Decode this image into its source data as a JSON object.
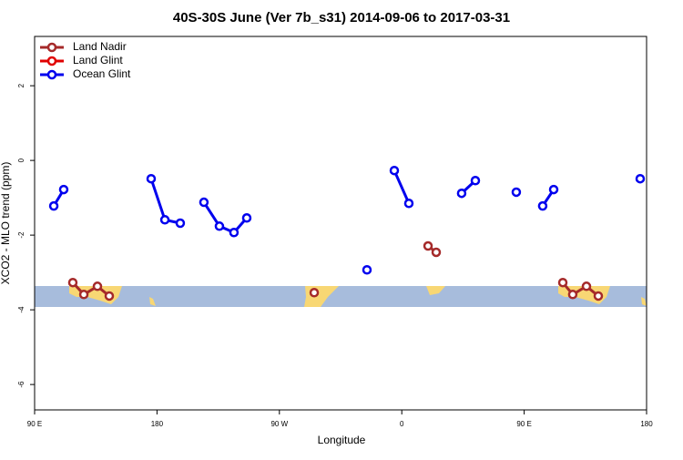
{
  "chart_data": {
    "type": "line",
    "title": "40S-30S June (Ver 7b_s31)   2014-09-06 to 2017-03-31",
    "x_label": "Longitude",
    "y_label": "XCO2 - MLO trend (ppm)",
    "xlim": [
      90,
      540
    ],
    "xticks": [
      {
        "value": 90,
        "label": "90 E"
      },
      {
        "value": 180,
        "label": "180"
      },
      {
        "value": 270,
        "label": "90 W"
      },
      {
        "value": 360,
        "label": "0"
      },
      {
        "value": 450,
        "label": "90 E"
      },
      {
        "value": 540,
        "label": "180"
      }
    ],
    "ylim": [
      -6.68,
      3.32
    ],
    "yticks": [
      2,
      0,
      -2,
      -4,
      -6
    ],
    "legend": "top-left",
    "series": [
      {
        "name": "Land Nadir",
        "color": "#a52a2a",
        "x": [
          118.1,
          126.2,
          136.2,
          144.9,
          null,
          295.6,
          null,
          379.3,
          385.3,
          null,
          478.4,
          485.7,
          495.8,
          504.5
        ],
        "values": [
          -3.27,
          -3.59,
          -3.37,
          -3.63,
          null,
          -3.54,
          null,
          -2.29,
          -2.46,
          null,
          -3.27,
          -3.59,
          -3.37,
          -3.63
        ]
      },
      {
        "name": "Land Glint",
        "color": "#e00000",
        "x": [],
        "values": []
      },
      {
        "name": "Ocean Glint",
        "color": "#0000ee",
        "x": [
          104.1,
          111.4,
          null,
          175.7,
          185.8,
          197.1,
          null,
          214.5,
          225.9,
          236.6,
          246.0,
          null,
          334.4,
          null,
          354.5,
          365.2,
          null,
          404.0,
          414.1,
          null,
          444.2,
          null,
          463.6,
          471.7,
          null,
          535.3
        ],
        "values": [
          -1.22,
          -0.78,
          null,
          -0.49,
          -1.59,
          -1.68,
          null,
          -1.12,
          -1.76,
          -1.93,
          -1.54,
          null,
          -2.93,
          null,
          -0.27,
          -1.15,
          null,
          -0.88,
          -0.54,
          null,
          -0.85,
          null,
          -1.22,
          -0.78,
          null,
          -0.49
        ]
      }
    ]
  }
}
